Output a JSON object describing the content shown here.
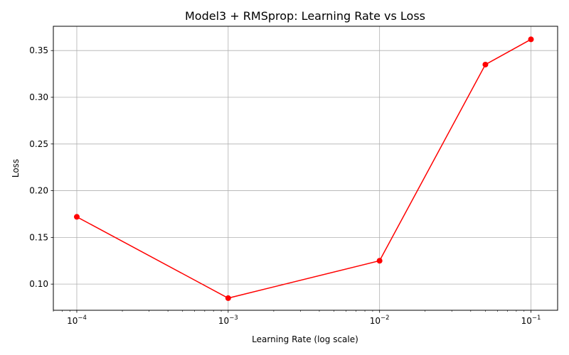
{
  "chart_data": {
    "type": "line",
    "title": "Model3 + RMSprop: Learning Rate vs Loss",
    "xlabel": "Learning Rate (log scale)",
    "ylabel": "Loss",
    "xscale": "log",
    "xlim": [
      7e-05,
      0.15
    ],
    "ylim": [
      0.072,
      0.376
    ],
    "x_ticks": [
      {
        "value": 0.0001,
        "base": "10",
        "exp": "−4"
      },
      {
        "value": 0.001,
        "base": "10",
        "exp": "−3"
      },
      {
        "value": 0.01,
        "base": "10",
        "exp": "−2"
      },
      {
        "value": 0.1,
        "base": "10",
        "exp": "−1"
      }
    ],
    "y_ticks": [
      {
        "value": 0.1,
        "label": "0.10"
      },
      {
        "value": 0.15,
        "label": "0.15"
      },
      {
        "value": 0.2,
        "label": "0.20"
      },
      {
        "value": 0.25,
        "label": "0.25"
      },
      {
        "value": 0.3,
        "label": "0.30"
      },
      {
        "value": 0.35,
        "label": "0.35"
      }
    ],
    "grid": true,
    "series": [
      {
        "color": "#ff0000",
        "marker": "circle",
        "x": [
          0.0001,
          0.001,
          0.01,
          0.05,
          0.1
        ],
        "y": [
          0.172,
          0.085,
          0.125,
          0.335,
          0.362
        ]
      }
    ]
  }
}
